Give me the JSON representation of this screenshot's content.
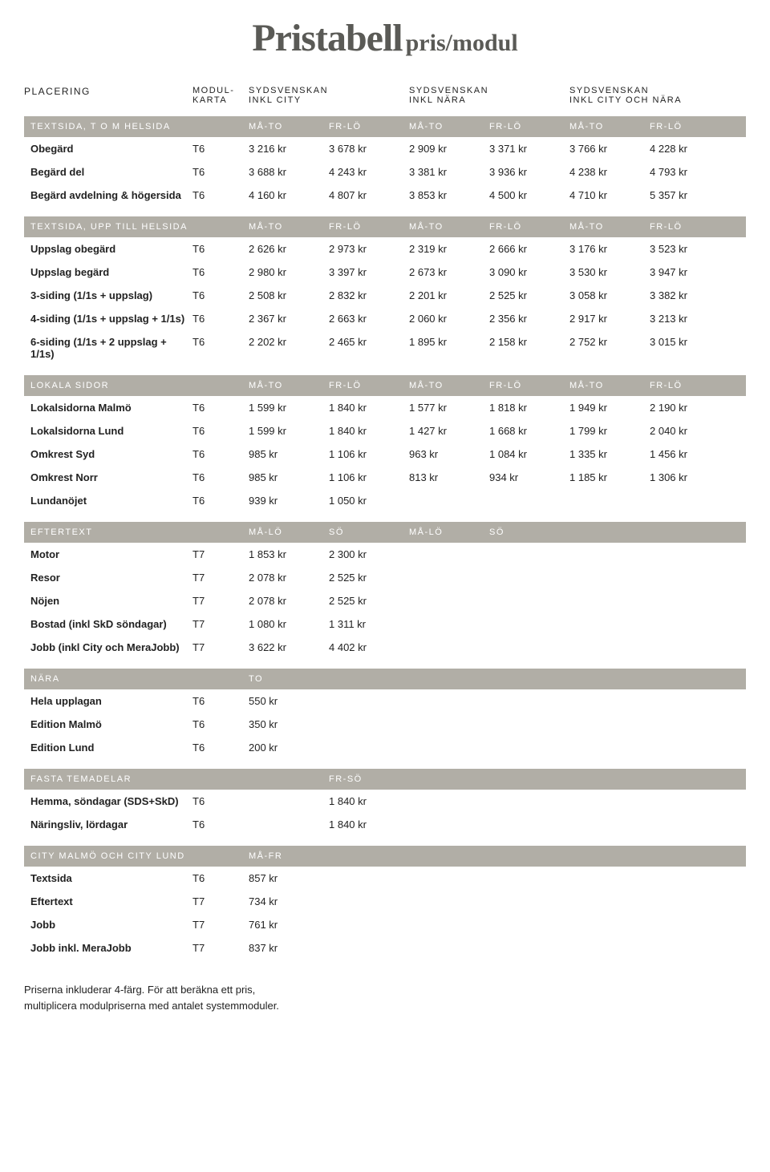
{
  "title_main": "Pristabell",
  "title_sub": "pris/modul",
  "colors": {
    "bar_bg": "#b1aea6",
    "bar_text": "#ffffff",
    "title_text": "#5a5a56",
    "body_text": "#222222",
    "background": "#ffffff"
  },
  "topHeaders": {
    "placering": "PLACERING",
    "modul": "MODUL-\nKARTA",
    "group1": "SYDSVENSKAN\nINKL CITY",
    "group2": "SYDSVENSKAN\nINKL NÄRA",
    "group3": "SYDSVENSKAN\nINKL CITY OCH NÄRA"
  },
  "sections": [
    {
      "grid": "grid8",
      "header": [
        "TEXTSIDA, T O M HELSIDA",
        "",
        "MÅ-TO",
        "FR-LÖ",
        "MÅ-TO",
        "FR-LÖ",
        "MÅ-TO",
        "FR-LÖ"
      ],
      "rows": [
        [
          "Obegärd",
          "T6",
          "3 216 kr",
          "3 678 kr",
          "2 909 kr",
          "3 371 kr",
          "3 766 kr",
          "4 228 kr"
        ],
        [
          "Begärd del",
          "T6",
          "3 688 kr",
          "4 243 kr",
          "3 381 kr",
          "3 936 kr",
          "4 238 kr",
          "4 793 kr"
        ],
        [
          "Begärd avdelning & högersida",
          "T6",
          "4 160 kr",
          "4 807 kr",
          "3 853 kr",
          "4 500 kr",
          "4 710 kr",
          "5 357 kr"
        ]
      ]
    },
    {
      "grid": "grid8",
      "header": [
        "TEXTSIDA, UPP TILL HELSIDA",
        "",
        "MÅ-TO",
        "FR-LÖ",
        "MÅ-TO",
        "FR-LÖ",
        "MÅ-TO",
        "FR-LÖ"
      ],
      "rows": [
        [
          "Uppslag obegärd",
          "T6",
          "2 626 kr",
          "2 973 kr",
          "2 319 kr",
          "2 666 kr",
          "3 176 kr",
          "3 523 kr"
        ],
        [
          "Uppslag begärd",
          "T6",
          "2 980 kr",
          "3 397 kr",
          "2 673 kr",
          "3 090 kr",
          "3 530 kr",
          "3 947 kr"
        ],
        [
          "3-siding (1/1s + uppslag)",
          "T6",
          "2 508 kr",
          "2 832 kr",
          "2 201 kr",
          "2 525 kr",
          "3 058 kr",
          "3 382 kr"
        ],
        [
          "4-siding (1/1s + uppslag + 1/1s)",
          "T6",
          "2 367 kr",
          "2 663 kr",
          "2 060 kr",
          "2 356 kr",
          "2 917 kr",
          "3 213 kr"
        ],
        [
          "6-siding (1/1s + 2 uppslag + 1/1s)",
          "T6",
          "2 202 kr",
          "2 465 kr",
          "1 895 kr",
          "2 158 kr",
          "2 752 kr",
          "3 015 kr"
        ]
      ]
    },
    {
      "grid": "grid8",
      "header": [
        "LOKALA SIDOR",
        "",
        "MÅ-TO",
        "FR-LÖ",
        "MÅ-TO",
        "FR-LÖ",
        "MÅ-TO",
        "FR-LÖ"
      ],
      "rows": [
        [
          "Lokalsidorna Malmö",
          "T6",
          "1 599 kr",
          "1 840 kr",
          "1 577 kr",
          "1 818 kr",
          "1 949 kr",
          "2 190 kr"
        ],
        [
          "Lokalsidorna Lund",
          "T6",
          "1 599 kr",
          "1 840 kr",
          "1 427 kr",
          "1 668 kr",
          "1 799 kr",
          "2 040 kr"
        ],
        [
          "Omkrest Syd",
          "T6",
          "985 kr",
          "1 106 kr",
          "963 kr",
          "1 084 kr",
          "1 335 kr",
          "1 456 kr"
        ],
        [
          "Omkrest Norr",
          "T6",
          "985 kr",
          "1 106 kr",
          "813 kr",
          "934 kr",
          "1 185 kr",
          "1 306 kr"
        ],
        [
          "Lundanöjet",
          "T6",
          "939 kr",
          "1 050 kr",
          "",
          "",
          "",
          ""
        ]
      ]
    },
    {
      "grid": "grid4",
      "header": [
        "EFTERTEXT",
        "",
        "MÅ-LÖ",
        "SÖ",
        "MÅ-LÖ",
        "SÖ",
        "",
        ""
      ],
      "rows": [
        [
          "Motor",
          "T7",
          "1 853 kr",
          "2 300 kr",
          "",
          "",
          "",
          ""
        ],
        [
          "Resor",
          "T7",
          "2 078 kr",
          "2 525 kr",
          "",
          "",
          "",
          ""
        ],
        [
          "Nöjen",
          "T7",
          "2 078 kr",
          "2 525 kr",
          "",
          "",
          "",
          ""
        ],
        [
          "Bostad (inkl SkD söndagar)",
          "T7",
          "1 080 kr",
          "1 311 kr",
          "",
          "",
          "",
          ""
        ],
        [
          "Jobb (inkl City och MeraJobb)",
          "T7",
          "3 622 kr",
          "4 402 kr",
          "",
          "",
          "",
          ""
        ]
      ]
    },
    {
      "grid": "grid3",
      "header": [
        "NÄRA",
        "",
        "TO",
        ""
      ],
      "rows": [
        [
          "Hela upplagan",
          "T6",
          "550 kr",
          ""
        ],
        [
          "Edition Malmö",
          "T6",
          "350 kr",
          ""
        ],
        [
          "Edition Lund",
          "T6",
          "200 kr",
          ""
        ]
      ]
    },
    {
      "grid": "gridFrso",
      "header": [
        "FASTA TEMADELAR",
        "",
        "",
        "FR-SÖ"
      ],
      "rows": [
        [
          "Hemma, söndagar (SDS+SkD)",
          "T6",
          "",
          "1 840 kr"
        ],
        [
          "Näringsliv, lördagar",
          "T6",
          "",
          "1 840 kr"
        ]
      ]
    },
    {
      "grid": "gridMafr",
      "header": [
        "CITY MALMÖ OCH CITY LUND",
        "",
        "MÅ-FR"
      ],
      "rows": [
        [
          "Textsida",
          "T6",
          "857 kr"
        ],
        [
          "Eftertext",
          "T7",
          "734 kr"
        ],
        [
          "Jobb",
          "T7",
          "761 kr"
        ],
        [
          "Jobb inkl. MeraJobb",
          "T7",
          "837 kr"
        ]
      ]
    }
  ],
  "footnote": "Priserna inkluderar 4-färg. För att beräkna ett pris,\nmultiplicera modulpriserna med antalet systemmoduler."
}
